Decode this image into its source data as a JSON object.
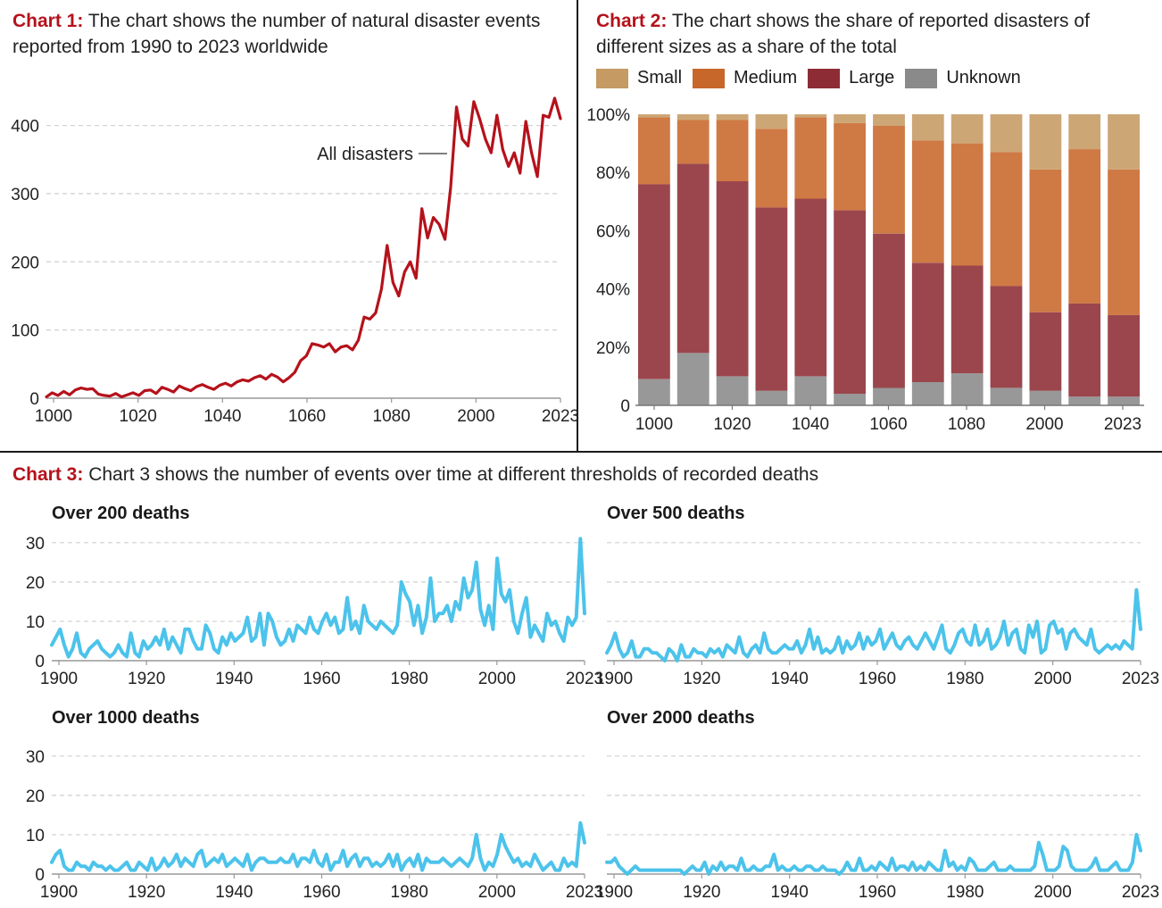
{
  "titles": {
    "chart1": {
      "label": "Chart 1:",
      "text": "The chart shows the number of natural disaster events reported from 1990 to 2023 worldwide"
    },
    "chart2": {
      "label": "Chart 2:",
      "text": "The chart shows the share of reported disasters of different sizes as a share of the total"
    },
    "chart3": {
      "label": "Chart 3:",
      "text": "Chart 3 shows the number of events over time at different thresholds of recorded deaths"
    }
  },
  "colors": {
    "accent_red": "#b5121b",
    "line_red": "#b5121b",
    "line_blue": "#4cc3eb",
    "small": "#c69a63",
    "medium": "#c8672a",
    "large": "#8d2c34",
    "unknown": "#8a8a8a"
  },
  "chart_data": [
    {
      "id": "chart1",
      "type": "line",
      "title": "The chart shows the number of natural disaster events reported from 1990 to 2023 worldwide",
      "annotation": "All disasters",
      "xlabel": "",
      "ylabel": "",
      "xticks": [
        "1000",
        "1020",
        "1040",
        "1060",
        "1080",
        "2000",
        "2023"
      ],
      "yticks": [
        0,
        100,
        200,
        300,
        400
      ],
      "ylim": [
        0,
        440
      ],
      "series": [
        {
          "name": "All disasters",
          "values": [
            2,
            8,
            4,
            10,
            5,
            12,
            15,
            13,
            14,
            6,
            4,
            3,
            7,
            2,
            5,
            8,
            4,
            11,
            12,
            7,
            16,
            13,
            9,
            18,
            14,
            11,
            17,
            20,
            16,
            13,
            19,
            22,
            18,
            24,
            27,
            25,
            30,
            33,
            28,
            35,
            31,
            24,
            30,
            38,
            55,
            62,
            80,
            78,
            75,
            80,
            68,
            75,
            77,
            71,
            85,
            119,
            116,
            125,
            160,
            224,
            170,
            150,
            185,
            200,
            176,
            278,
            235,
            265,
            255,
            233,
            310,
            427,
            380,
            370,
            435,
            410,
            380,
            360,
            415,
            365,
            340,
            360,
            330,
            406,
            360,
            325,
            415,
            412,
            440,
            410
          ]
        }
      ]
    },
    {
      "id": "chart2",
      "type": "bar",
      "stacked": true,
      "title": "The chart shows the share of reported disasters of different sizes as a share of the total",
      "legend": [
        "Small",
        "Medium",
        "Large",
        "Unknown"
      ],
      "xticks": [
        "1000",
        "1020",
        "1040",
        "1060",
        "1080",
        "2000",
        "2023"
      ],
      "yticks": [
        "0",
        "20%",
        "40%",
        "60%",
        "80%",
        "100%"
      ],
      "ylim": [
        0,
        100
      ],
      "series": [
        {
          "name": "Unknown",
          "values": [
            9,
            18,
            10,
            5,
            10,
            4,
            6,
            8,
            11,
            6,
            5,
            3,
            3
          ]
        },
        {
          "name": "Large",
          "values": [
            67,
            65,
            67,
            63,
            61,
            63,
            53,
            41,
            37,
            35,
            27,
            32,
            28
          ]
        },
        {
          "name": "Medium",
          "values": [
            23,
            15,
            21,
            27,
            28,
            30,
            37,
            42,
            42,
            46,
            49,
            53,
            50
          ]
        },
        {
          "name": "Small",
          "values": [
            1,
            2,
            2,
            5,
            1,
            3,
            4,
            9,
            10,
            13,
            19,
            12,
            19
          ]
        }
      ]
    },
    {
      "id": "chart3a",
      "type": "line",
      "title": "Over 200 deaths",
      "xticks": [
        "1900",
        "1920",
        "1940",
        "1960",
        "1980",
        "2000",
        "2023"
      ],
      "yticks": [
        0,
        10,
        20,
        30
      ],
      "ylim": [
        0,
        32
      ],
      "series": [
        {
          "name": "Over 200 deaths",
          "values": [
            4,
            6,
            8,
            4,
            1,
            3,
            7,
            2,
            1,
            3,
            4,
            5,
            3,
            2,
            1,
            2,
            4,
            2,
            1,
            7,
            2,
            1,
            5,
            3,
            4,
            6,
            4,
            8,
            3,
            6,
            4,
            2,
            8,
            8,
            5,
            3,
            3,
            9,
            7,
            3,
            2,
            6,
            4,
            7,
            5,
            6,
            7,
            11,
            5,
            6,
            12,
            4,
            12,
            10,
            6,
            4,
            5,
            8,
            5,
            9,
            8,
            7,
            11,
            8,
            7,
            10,
            12,
            9,
            11,
            7,
            8,
            16,
            8,
            10,
            7,
            14,
            10,
            9,
            8,
            10,
            9,
            8,
            7,
            9,
            20,
            17,
            15,
            9,
            14,
            7,
            11,
            21,
            10,
            12,
            12,
            14,
            10,
            15,
            13,
            21,
            16,
            18,
            25,
            13,
            9,
            14,
            8,
            26,
            17,
            15,
            18,
            10,
            7,
            12,
            16,
            6,
            9,
            7,
            5,
            12,
            9,
            10,
            7,
            5,
            11,
            9,
            11,
            31,
            12
          ]
        }
      ]
    },
    {
      "id": "chart3b",
      "type": "line",
      "title": "Over 500 deaths",
      "xticks": [
        "1900",
        "1920",
        "1940",
        "1960",
        "1980",
        "2000",
        "2023"
      ],
      "yticks": [
        0,
        10,
        20,
        30
      ],
      "ylim": [
        0,
        32
      ],
      "series": [
        {
          "name": "Over 500 deaths",
          "values": [
            2,
            4,
            7,
            3,
            1,
            2,
            5,
            1,
            1,
            3,
            3,
            2,
            2,
            1,
            0,
            3,
            2,
            0,
            4,
            1,
            1,
            3,
            2,
            2,
            1,
            3,
            2,
            3,
            1,
            4,
            3,
            2,
            6,
            2,
            1,
            3,
            4,
            2,
            7,
            3,
            2,
            2,
            3,
            4,
            3,
            3,
            5,
            2,
            4,
            8,
            3,
            6,
            2,
            3,
            2,
            3,
            6,
            2,
            5,
            3,
            4,
            7,
            3,
            6,
            4,
            5,
            8,
            3,
            5,
            7,
            4,
            3,
            5,
            6,
            4,
            3,
            5,
            7,
            5,
            3,
            6,
            9,
            3,
            2,
            4,
            7,
            8,
            5,
            4,
            9,
            4,
            5,
            8,
            3,
            4,
            6,
            10,
            4,
            7,
            8,
            3,
            2,
            9,
            6,
            10,
            2,
            3,
            9,
            10,
            7,
            8,
            3,
            7,
            8,
            6,
            5,
            4,
            8,
            3,
            2,
            3,
            4,
            3,
            4,
            3,
            5,
            4,
            3,
            18,
            8
          ]
        }
      ]
    },
    {
      "id": "chart3c",
      "type": "line",
      "title": "Over 1000 deaths",
      "xticks": [
        "1900",
        "1920",
        "1940",
        "1960",
        "1980",
        "2000",
        "2023"
      ],
      "yticks": [
        0,
        10,
        20,
        30
      ],
      "ylim": [
        0,
        32
      ],
      "series": [
        {
          "name": "Over 1000 deaths",
          "values": [
            3,
            5,
            6,
            2,
            1,
            1,
            3,
            2,
            2,
            1,
            3,
            2,
            2,
            1,
            2,
            1,
            1,
            2,
            3,
            1,
            1,
            3,
            2,
            1,
            4,
            1,
            2,
            4,
            2,
            3,
            5,
            2,
            4,
            3,
            2,
            5,
            6,
            2,
            3,
            4,
            3,
            5,
            2,
            3,
            4,
            3,
            2,
            5,
            1,
            3,
            4,
            4,
            3,
            3,
            3,
            4,
            3,
            3,
            5,
            2,
            4,
            4,
            3,
            6,
            3,
            2,
            5,
            1,
            3,
            3,
            6,
            2,
            4,
            5,
            2,
            4,
            4,
            2,
            3,
            2,
            3,
            5,
            2,
            5,
            1,
            3,
            4,
            2,
            5,
            1,
            4,
            3,
            3,
            3,
            4,
            3,
            2,
            3,
            4,
            3,
            2,
            4,
            10,
            4,
            1,
            3,
            2,
            5,
            10,
            7,
            5,
            3,
            4,
            2,
            3,
            2,
            5,
            3,
            1,
            2,
            3,
            1,
            1,
            4,
            2,
            3,
            2,
            13,
            8
          ]
        }
      ]
    },
    {
      "id": "chart3d",
      "type": "line",
      "title": "Over 2000 deaths",
      "xticks": [
        "1900",
        "1920",
        "1940",
        "1960",
        "1980",
        "2000",
        "2023"
      ],
      "yticks": [
        0,
        10,
        20,
        30
      ],
      "ylim": [
        0,
        32
      ],
      "series": [
        {
          "name": "Over 2000 deaths",
          "values": [
            3,
            3,
            4,
            2,
            1,
            0,
            1,
            2,
            1,
            1,
            1,
            1,
            1,
            1,
            1,
            1,
            1,
            1,
            1,
            0,
            1,
            2,
            1,
            1,
            3,
            0,
            2,
            1,
            3,
            1,
            2,
            2,
            1,
            4,
            1,
            1,
            2,
            1,
            1,
            2,
            2,
            5,
            1,
            2,
            1,
            1,
            2,
            1,
            1,
            2,
            2,
            1,
            1,
            2,
            1,
            1,
            1,
            0,
            1,
            3,
            1,
            1,
            4,
            1,
            1,
            2,
            1,
            3,
            2,
            1,
            4,
            1,
            2,
            2,
            1,
            3,
            1,
            2,
            1,
            3,
            2,
            1,
            1,
            6,
            2,
            3,
            1,
            2,
            1,
            4,
            3,
            1,
            1,
            1,
            2,
            3,
            1,
            1,
            1,
            2,
            1,
            1,
            1,
            1,
            1,
            2,
            8,
            5,
            1,
            1,
            1,
            2,
            7,
            6,
            2,
            1,
            1,
            1,
            1,
            2,
            4,
            1,
            1,
            1,
            2,
            3,
            1,
            1,
            1,
            3,
            10,
            6
          ]
        }
      ]
    }
  ]
}
